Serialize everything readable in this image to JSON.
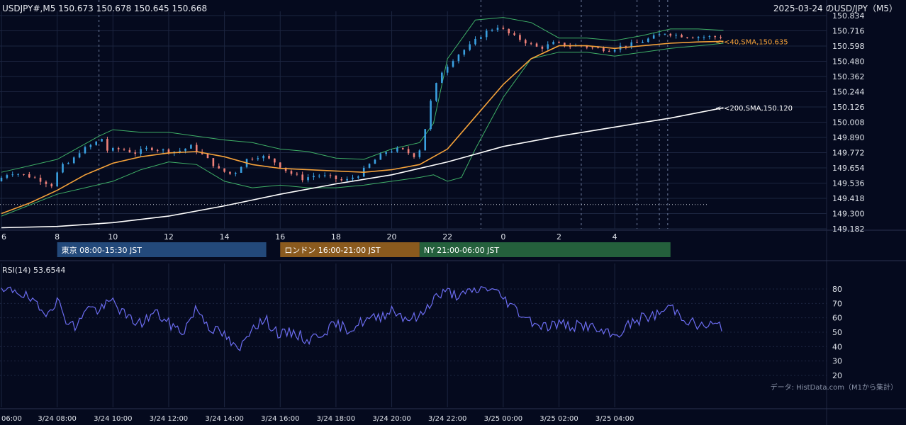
{
  "header": {
    "symbol_info": "USDJPY#,M5 150.673 150.678 150.645 150.668",
    "date_title": "2025-03-24 のUSD/JPY（M5）"
  },
  "colors": {
    "background": "#050a1e",
    "grid": "#1c2540",
    "bull": "#3aa0e0",
    "bear": "#f0827a",
    "sma40": "#f5a23a",
    "sma200": "#ffffff",
    "bollinger": "#3fb067",
    "rsi": "#6b6cf0",
    "tokyo": "#23497a",
    "london": "#8a5a1e",
    "ny": "#24603c",
    "text": "#dfe3ea"
  },
  "chart_data": [
    {
      "type": "candlestick",
      "name": "price",
      "y_ticks": [
        "150.834",
        "150.716",
        "150.598",
        "150.480",
        "150.362",
        "150.244",
        "150.126",
        "150.008",
        "149.890",
        "149.772",
        "149.654",
        "149.536",
        "149.418",
        "149.300",
        "149.182"
      ],
      "ylim": [
        149.182,
        150.834
      ],
      "x_hour_ticks": [
        "6",
        "8",
        "10",
        "12",
        "14",
        "16",
        "18",
        "20",
        "22",
        "0",
        "2",
        "4"
      ],
      "x_range_hours": [
        6,
        35.6
      ],
      "price_path": [
        [
          6,
          149.55
        ],
        [
          6.5,
          149.62
        ],
        [
          7,
          149.6
        ],
        [
          7.5,
          149.57
        ],
        [
          8,
          149.52
        ],
        [
          8.3,
          149.66
        ],
        [
          8.7,
          149.7
        ],
        [
          9,
          149.78
        ],
        [
          9.5,
          149.84
        ],
        [
          9.8,
          149.88
        ],
        [
          10,
          149.79
        ],
        [
          10.5,
          149.8
        ],
        [
          11,
          149.77
        ],
        [
          11.5,
          149.81
        ],
        [
          12,
          149.79
        ],
        [
          12.5,
          149.78
        ],
        [
          13,
          149.82
        ],
        [
          13.5,
          149.74
        ],
        [
          14,
          149.64
        ],
        [
          14.5,
          149.6
        ],
        [
          15,
          149.72
        ],
        [
          15.5,
          149.75
        ],
        [
          16,
          149.7
        ],
        [
          16.5,
          149.62
        ],
        [
          17,
          149.57
        ],
        [
          17.5,
          149.6
        ],
        [
          18,
          149.58
        ],
        [
          18.5,
          149.55
        ],
        [
          19,
          149.6
        ],
        [
          19.5,
          149.7
        ],
        [
          20,
          149.78
        ],
        [
          20.5,
          149.8
        ],
        [
          21,
          149.75
        ],
        [
          21.3,
          149.82
        ],
        [
          21.5,
          150.1
        ],
        [
          21.8,
          150.3
        ],
        [
          22,
          150.4
        ],
        [
          22.5,
          150.52
        ],
        [
          23,
          150.6
        ],
        [
          23.5,
          150.7
        ],
        [
          24,
          150.75
        ],
        [
          24.5,
          150.68
        ],
        [
          25,
          150.63
        ],
        [
          25.5,
          150.58
        ],
        [
          26,
          150.62
        ],
        [
          26.5,
          150.6
        ],
        [
          27,
          150.6
        ],
        [
          27.5,
          150.58
        ],
        [
          28,
          150.57
        ],
        [
          28.5,
          150.6
        ],
        [
          29,
          150.62
        ],
        [
          29.5,
          150.66
        ],
        [
          30,
          150.7
        ],
        [
          30.5,
          150.68
        ],
        [
          31,
          150.67
        ],
        [
          31.5,
          150.67
        ],
        [
          31.9,
          150.668
        ]
      ],
      "sma40_path": [
        [
          6,
          149.3
        ],
        [
          7,
          149.38
        ],
        [
          8,
          149.48
        ],
        [
          9,
          149.6
        ],
        [
          10,
          149.69
        ],
        [
          11,
          149.74
        ],
        [
          12,
          149.77
        ],
        [
          13,
          149.78
        ],
        [
          14,
          149.74
        ],
        [
          15,
          149.68
        ],
        [
          16,
          149.65
        ],
        [
          17,
          149.64
        ],
        [
          18,
          149.63
        ],
        [
          19,
          149.62
        ],
        [
          20,
          149.64
        ],
        [
          21,
          149.68
        ],
        [
          22,
          149.8
        ],
        [
          23,
          150.05
        ],
        [
          24,
          150.3
        ],
        [
          25,
          150.5
        ],
        [
          26,
          150.6
        ],
        [
          27,
          150.6
        ],
        [
          28,
          150.58
        ],
        [
          29,
          150.6
        ],
        [
          30,
          150.62
        ],
        [
          31,
          150.63
        ],
        [
          31.9,
          150.635
        ]
      ],
      "sma200_path": [
        [
          6,
          149.19
        ],
        [
          8,
          149.2
        ],
        [
          10,
          149.23
        ],
        [
          12,
          149.28
        ],
        [
          14,
          149.36
        ],
        [
          16,
          149.45
        ],
        [
          18,
          149.53
        ],
        [
          20,
          149.6
        ],
        [
          22,
          149.7
        ],
        [
          24,
          149.82
        ],
        [
          26,
          149.9
        ],
        [
          28,
          149.97
        ],
        [
          30,
          150.04
        ],
        [
          31.9,
          150.12
        ]
      ],
      "bollinger_upper": [
        [
          6,
          149.62
        ],
        [
          8,
          149.72
        ],
        [
          9.5,
          149.9
        ],
        [
          10,
          149.95
        ],
        [
          11,
          149.93
        ],
        [
          12,
          149.93
        ],
        [
          13,
          149.9
        ],
        [
          14,
          149.87
        ],
        [
          15,
          149.85
        ],
        [
          16,
          149.8
        ],
        [
          17,
          149.78
        ],
        [
          18,
          149.73
        ],
        [
          19,
          149.72
        ],
        [
          20,
          149.8
        ],
        [
          21,
          149.85
        ],
        [
          21.5,
          150.0
        ],
        [
          22,
          150.5
        ],
        [
          23,
          150.8
        ],
        [
          24,
          150.82
        ],
        [
          25,
          150.78
        ],
        [
          26,
          150.66
        ],
        [
          27,
          150.66
        ],
        [
          28,
          150.64
        ],
        [
          29,
          150.68
        ],
        [
          30,
          150.73
        ],
        [
          31,
          150.73
        ],
        [
          31.9,
          150.72
        ]
      ],
      "bollinger_lower": [
        [
          6,
          149.28
        ],
        [
          8,
          149.45
        ],
        [
          9,
          149.5
        ],
        [
          10,
          149.55
        ],
        [
          11,
          149.64
        ],
        [
          12,
          149.7
        ],
        [
          13,
          149.68
        ],
        [
          14,
          149.55
        ],
        [
          15,
          149.5
        ],
        [
          16,
          149.52
        ],
        [
          17,
          149.5
        ],
        [
          18,
          149.5
        ],
        [
          19,
          149.52
        ],
        [
          20,
          149.55
        ],
        [
          21,
          149.58
        ],
        [
          21.5,
          149.6
        ],
        [
          22,
          149.55
        ],
        [
          22.5,
          149.58
        ],
        [
          23,
          149.8
        ],
        [
          24,
          150.2
        ],
        [
          25,
          150.5
        ],
        [
          26,
          150.55
        ],
        [
          27,
          150.55
        ],
        [
          28,
          150.52
        ],
        [
          29,
          150.55
        ],
        [
          30,
          150.58
        ],
        [
          31,
          150.6
        ],
        [
          31.9,
          150.62
        ]
      ],
      "hline_dotted": 149.37,
      "annotations": [
        {
          "text": "<-<40,SMA,150.635",
          "value": 150.635,
          "series": "sma40"
        },
        {
          "text": "<-<200,SMA,150.120",
          "value": 150.12,
          "series": "sma200"
        }
      ],
      "vlines_dashed_hours": [
        9.5,
        23.2,
        26.8,
        28.8,
        29.6,
        29.9
      ]
    },
    {
      "type": "line",
      "name": "RSI",
      "title": "RSI(14) 53.6544",
      "y_ticks": [
        20,
        30,
        40,
        50,
        60,
        70,
        80
      ],
      "ylim": [
        20,
        80
      ],
      "x_range_hours": [
        6,
        35.6
      ],
      "values": [
        [
          6,
          77
        ],
        [
          6.5,
          80
        ],
        [
          7,
          73
        ],
        [
          7.5,
          63
        ],
        [
          8,
          72
        ],
        [
          8.3,
          60
        ],
        [
          8.7,
          52
        ],
        [
          9,
          68
        ],
        [
          9.5,
          65
        ],
        [
          10,
          72
        ],
        [
          10.5,
          60
        ],
        [
          11,
          56
        ],
        [
          11.5,
          64
        ],
        [
          12,
          56
        ],
        [
          12.5,
          50
        ],
        [
          13,
          67
        ],
        [
          13.5,
          53
        ],
        [
          14,
          48
        ],
        [
          14.5,
          36
        ],
        [
          15,
          55
        ],
        [
          15.5,
          58
        ],
        [
          16,
          48
        ],
        [
          16.5,
          50
        ],
        [
          17,
          44
        ],
        [
          17.5,
          50
        ],
        [
          18,
          55
        ],
        [
          18.5,
          52
        ],
        [
          19,
          58
        ],
        [
          19.5,
          60
        ],
        [
          20,
          66
        ],
        [
          20.5,
          60
        ],
        [
          21,
          60
        ],
        [
          21.5,
          74
        ],
        [
          22,
          78
        ],
        [
          22.5,
          75
        ],
        [
          23,
          79
        ],
        [
          23.5,
          81
        ],
        [
          24,
          74
        ],
        [
          24.5,
          65
        ],
        [
          25,
          58
        ],
        [
          25.5,
          54
        ],
        [
          26,
          56
        ],
        [
          26.5,
          54
        ],
        [
          27,
          55
        ],
        [
          27.5,
          50
        ],
        [
          28,
          47
        ],
        [
          28.5,
          55
        ],
        [
          29,
          60
        ],
        [
          29.5,
          62
        ],
        [
          30,
          68
        ],
        [
          30.5,
          60
        ],
        [
          31,
          54
        ],
        [
          31.5,
          55
        ],
        [
          31.9,
          53.65
        ]
      ]
    }
  ],
  "sessions": [
    {
      "label": "東京 08:00-15:30 JST",
      "start": 8,
      "end": 15.5
    },
    {
      "label": "ロンドン 16:00-21:00 JST",
      "start": 16,
      "end": 21
    },
    {
      "label": "NY 21:00-06:00 JST",
      "start": 21,
      "end": 30
    }
  ],
  "bottom_time_axis": [
    "06:00",
    "3/24 08:00",
    "3/24 10:00",
    "3/24 12:00",
    "3/24 14:00",
    "3/24 16:00",
    "3/24 18:00",
    "3/24 20:00",
    "3/24 22:00",
    "3/25 00:00",
    "3/25 02:00",
    "3/25 04:00"
  ],
  "source": "データ: HistData.com（M1から集計）"
}
